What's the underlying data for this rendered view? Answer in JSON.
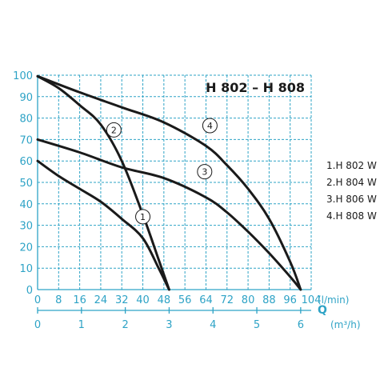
{
  "chart_data": {
    "type": "line",
    "title": "H 802 – H 808",
    "x_primary": {
      "unit": "(l/min)",
      "range": [
        0,
        104
      ],
      "ticks": [
        0,
        8,
        16,
        24,
        32,
        40,
        48,
        56,
        64,
        72,
        80,
        88,
        96,
        104
      ]
    },
    "x_secondary": {
      "label": "Q",
      "unit": "(m³/h)",
      "range": [
        0,
        6.24
      ],
      "ticks": [
        0,
        1,
        2,
        3,
        4,
        5,
        6
      ]
    },
    "y": {
      "range": [
        0,
        100
      ],
      "ticks": [
        0,
        10,
        20,
        30,
        40,
        50,
        60,
        70,
        80,
        90,
        100
      ],
      "tick_labels": [
        "0",
        "10",
        "20",
        "30",
        "40",
        "50",
        "60",
        "70",
        "80",
        "90",
        "100"
      ]
    },
    "grid": true,
    "legend_position": "right",
    "legend": [
      "1.H 802 W",
      "2.H 804 W",
      "3.H 806 W",
      "4.H 808 W"
    ],
    "series": [
      {
        "marker": "1",
        "marker_at": [
          40,
          34
        ],
        "points": [
          [
            0,
            60
          ],
          [
            8,
            53
          ],
          [
            16,
            47
          ],
          [
            24,
            41
          ],
          [
            32,
            33
          ],
          [
            40,
            24
          ],
          [
            46,
            10
          ],
          [
            50,
            0
          ]
        ]
      },
      {
        "marker": "2",
        "marker_at": [
          29,
          74.5
        ],
        "points": [
          [
            0,
            99.5
          ],
          [
            8,
            94
          ],
          [
            16,
            86
          ],
          [
            24,
            77
          ],
          [
            32,
            60
          ],
          [
            40,
            35
          ],
          [
            46,
            14
          ],
          [
            50,
            0
          ]
        ]
      },
      {
        "marker": "3",
        "marker_at": [
          63.5,
          55
        ],
        "points": [
          [
            0,
            70
          ],
          [
            16,
            64
          ],
          [
            32,
            57
          ],
          [
            48,
            52
          ],
          [
            64,
            43
          ],
          [
            72,
            36
          ],
          [
            80,
            27
          ],
          [
            88,
            17
          ],
          [
            96,
            6
          ],
          [
            100,
            0
          ]
        ]
      },
      {
        "marker": "4",
        "marker_at": [
          65.5,
          76.5
        ],
        "points": [
          [
            0,
            99.5
          ],
          [
            16,
            92
          ],
          [
            32,
            85
          ],
          [
            48,
            78
          ],
          [
            64,
            67
          ],
          [
            72,
            58
          ],
          [
            80,
            47
          ],
          [
            88,
            33
          ],
          [
            96,
            13
          ],
          [
            100,
            0
          ]
        ]
      }
    ]
  }
}
